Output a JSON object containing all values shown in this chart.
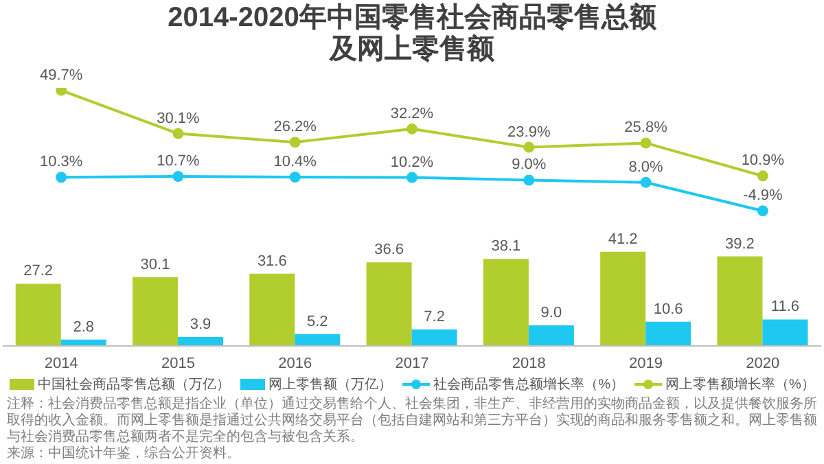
{
  "chart_data": [
    {
      "type": "line",
      "title": "2014-2020年中国零售社会商品零售总额及网上零售额",
      "categories": [
        null,
        null,
        null,
        null,
        null,
        null,
        null
      ],
      "series": [
        {
          "name": "社会商品零售总额增长率（%）",
          "marker": "circle",
          "color": "#1ec8f0",
          "values": [
            10.3,
            10.7,
            10.4,
            10.2,
            9.0,
            8.0,
            -4.9
          ],
          "value_labels": [
            "10.3%",
            "10.7%",
            "10.4%",
            "10.2%",
            "9.0%",
            "8.0%",
            "-4.9%"
          ]
        },
        {
          "name": "网上零售额增长率（%）",
          "marker": "circle",
          "color": "#b2cd2e",
          "values": [
            49.7,
            30.1,
            26.2,
            32.2,
            23.9,
            25.8,
            10.9
          ],
          "value_labels": [
            "49.7%",
            "30.1%",
            "26.2%",
            "32.2%",
            "23.9%",
            "25.8%",
            "10.9%"
          ]
        }
      ],
      "legend": "bottom",
      "tick_labels": false
    },
    {
      "type": "bar",
      "categories": [
        "2014",
        "2015",
        "2016",
        "2017",
        "2018",
        "2019",
        "2020"
      ],
      "series": [
        {
          "name": "中国社会商品零售总额（万亿）",
          "color": "#b2cd2e",
          "values": [
            27.2,
            30.1,
            31.6,
            36.6,
            38.1,
            41.2,
            39.2
          ],
          "value_labels": [
            "27.2",
            "30.1",
            "31.6",
            "36.6",
            "38.1",
            "41.2",
            "39.2"
          ]
        },
        {
          "name": "网上零售额（万亿）",
          "color": "#1ec8f0",
          "values": [
            2.8,
            3.9,
            5.2,
            7.2,
            9.0,
            10.6,
            11.6
          ],
          "value_labels": [
            "2.8",
            "3.9",
            "5.2",
            "7.2",
            "9.0",
            "10.6",
            "11.6"
          ]
        }
      ],
      "legend": "bottom",
      "tick_labels": "x",
      "annotations": [
        "注释：社会消费品零售总额是指企业（单位）通过交易售给个人、社会集团，非生产、非经营用的实物商品金额，以及提供餐饮服务所取得的收入金额。而网上零售额是指通过公共网络交易平台（包括自建网站和第三方平台）实现的商品和服务零售额之和。网上零售额与社会消费品零售总额两者不是完全的包含与被包含关系。",
        "来源：中国统计年鉴，综合公开资料。"
      ]
    }
  ]
}
